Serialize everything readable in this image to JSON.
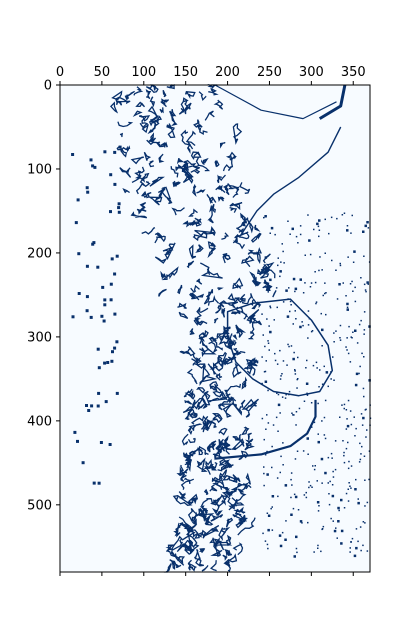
{
  "chart_data": {
    "type": "heatmap",
    "title": "",
    "xlabel": "",
    "ylabel": "",
    "x_axis_position": "top",
    "y_axis_inverted": true,
    "xlim": [
      0,
      370
    ],
    "ylim": [
      580,
      0
    ],
    "x_ticks": [
      0,
      50,
      100,
      150,
      200,
      250,
      300,
      350
    ],
    "x_tick_labels": [
      "0",
      "50",
      "100",
      "150",
      "200",
      "250",
      "300",
      "350"
    ],
    "y_ticks": [
      0,
      100,
      200,
      300,
      400,
      500
    ],
    "y_tick_labels": [
      "0",
      "100",
      "200",
      "300",
      "400",
      "500"
    ],
    "bottom_ticks_unlabeled": true,
    "grid": false,
    "legend": "none",
    "colors": {
      "background": "#f7fbff",
      "edge": "#08306b"
    },
    "regions": {
      "left_dense_band": {
        "x_range": [
          40,
          240
        ],
        "center_path": [
          [
            130,
            0
          ],
          [
            140,
            60
          ],
          [
            150,
            120
          ],
          [
            175,
            200
          ],
          [
            190,
            260
          ],
          [
            195,
            330
          ],
          [
            190,
            400
          ],
          [
            185,
            460
          ],
          [
            180,
            520
          ],
          [
            165,
            580
          ]
        ],
        "half_width": 25
      },
      "central_loop": {
        "points": [
          [
            200,
            270
          ],
          [
            230,
            260
          ],
          [
            275,
            255
          ],
          [
            300,
            280
          ],
          [
            320,
            310
          ],
          [
            325,
            340
          ],
          [
            310,
            365
          ],
          [
            285,
            370
          ],
          [
            255,
            365
          ],
          [
            230,
            350
          ],
          [
            210,
            330
          ],
          [
            200,
            300
          ]
        ]
      },
      "right_arc": {
        "points": [
          [
            310,
            40
          ],
          [
            335,
            25
          ],
          [
            340,
            0
          ]
        ]
      },
      "top_arc": {
        "points": [
          [
            185,
            0
          ],
          [
            240,
            30
          ],
          [
            290,
            40
          ],
          [
            330,
            20
          ]
        ]
      },
      "arc_at_190": {
        "points": [
          [
            215,
            180
          ],
          [
            235,
            150
          ],
          [
            255,
            130
          ],
          [
            285,
            110
          ],
          [
            320,
            80
          ],
          [
            335,
            50
          ]
        ]
      },
      "lower_arc": {
        "points": [
          [
            185,
            445
          ],
          [
            240,
            440
          ],
          [
            275,
            430
          ],
          [
            295,
            415
          ],
          [
            305,
            395
          ],
          [
            305,
            375
          ]
        ]
      },
      "scatter_right": {
        "x_range": [
          240,
          370
        ],
        "y_range": [
          150,
          560
        ],
        "density": 0.035
      }
    }
  }
}
